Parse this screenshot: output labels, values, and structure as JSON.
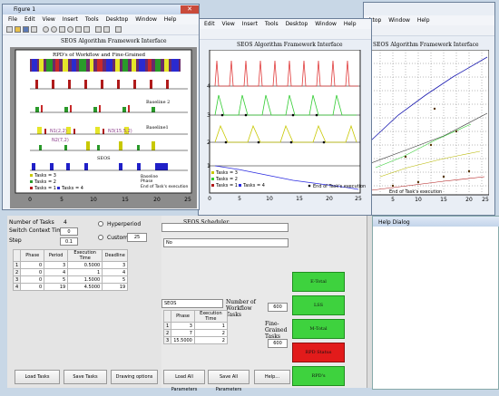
{
  "figure1": {
    "title": "Figure 1",
    "menu": [
      "File",
      "Edit",
      "View",
      "Insert",
      "Tools",
      "Desktop",
      "Window",
      "Help"
    ],
    "plot_title": "SEOS Algorithm Framework Interface",
    "subplot_title": "RPD's of Workflow and Fine-Grained",
    "labels": {
      "baseline2": "Baseline 2",
      "baseline1": "Baseline1",
      "seos": "SEOS",
      "n1": "N1(2,2)",
      "n2": "N3(15,5,2)",
      "n3": "N2(7,2)"
    },
    "x_ticks": [
      "0",
      "5",
      "10",
      "15",
      "20",
      "25"
    ],
    "legend": [
      "Tasks = 3",
      "Tasks = 2",
      "Tasks = 1",
      "Tasks = 4",
      "Baseline",
      "Phase",
      "End of Task's execution"
    ]
  },
  "figure2": {
    "menu": [
      "Edit",
      "View",
      "Insert",
      "Tools",
      "Desktop",
      "Window",
      "Help"
    ],
    "plot_title": "SEOS Algorithm Framework Interface",
    "x_ticks": [
      "0",
      "5",
      "10",
      "15",
      "20",
      "25"
    ],
    "y_ticks": [
      "4",
      "3",
      "2",
      "1"
    ],
    "legend": [
      "Tasks = 3",
      "Tasks = 2",
      "Tasks = 1",
      "Tasks = 4",
      "End of Task's execution"
    ]
  },
  "figure3": {
    "menu": [
      "ktop",
      "Window",
      "Help"
    ],
    "plot_title": "SEOS Algorithm Framework Interface",
    "x_ticks": [
      "5",
      "10",
      "15",
      "20",
      "25"
    ],
    "legend": "End of Task's execution"
  },
  "help_dialog": "Help Dialog",
  "panel": {
    "num_tasks_label": "Number of Tasks",
    "num_tasks_value": "4",
    "switch_label": "Switch Context Time",
    "switch_value": "0",
    "step_label": "Step",
    "step_value": "0.1",
    "hyperperiod_label": "Hyperperiod",
    "custom_label": "Custom",
    "custom_value": "25",
    "table_headers": [
      "Phase",
      "Period",
      "Execution Time",
      "Deadline"
    ],
    "rows": [
      [
        "1",
        "0",
        "3",
        "0.5000",
        "3"
      ],
      [
        "2",
        "0",
        "4",
        "1",
        "4"
      ],
      [
        "3",
        "0",
        "5",
        "1.5000",
        "5"
      ],
      [
        "4",
        "0",
        "19",
        "4.5000",
        "19"
      ]
    ],
    "load_tasks": "Load Tasks",
    "save_tasks": "Save Tasks",
    "drawing_options": "Drawing options"
  },
  "scheduler": {
    "title": "SEOS Scheduler",
    "dropdown_value": "No",
    "algo_value": "SEOS",
    "workflow_label": "Number of Workflow Tasks",
    "workflow_value": "600",
    "fine_label": "Fine-Grained Tasks",
    "fine_value": "600",
    "table_headers": [
      "Phase",
      "Execution Time"
    ],
    "rows": [
      [
        "1",
        "3",
        "1"
      ],
      [
        "2",
        "7",
        "2"
      ],
      [
        "3",
        "15.5000",
        "2"
      ]
    ],
    "load_all": "Load All Parameters",
    "save_all": "Save All Parameters",
    "help": "Help..."
  },
  "side_buttons": [
    "E-Total",
    "LSS",
    "M-Total",
    "RPD Status",
    "RPD's"
  ],
  "colors": {
    "green": "#3ed23e",
    "red": "#e21b1b"
  }
}
